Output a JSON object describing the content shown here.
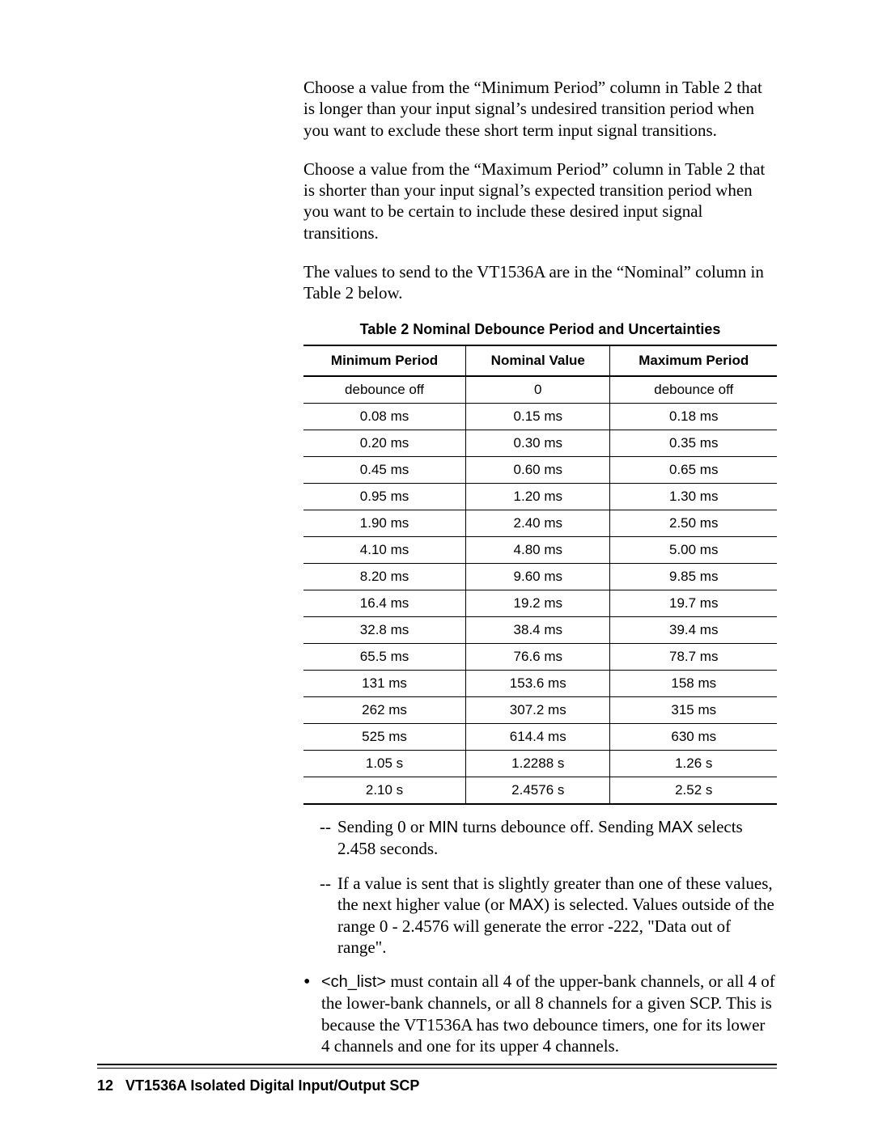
{
  "paragraphs": {
    "p1": "Choose a value from the “Minimum Period” column in Table 2 that is longer than your input signal’s undesired transition period when you want to exclude these short term input signal transitions.",
    "p2": "Choose a value from the “Maximum Period” column in Table 2 that is shorter than your input signal’s expected transition period when you want to be certain to include these desired input signal transitions.",
    "p3": "The values to send to the VT1536A are in the “Nominal” column in Table 2 below."
  },
  "table": {
    "caption": "Table 2  Nominal Debounce Period and Uncertainties",
    "columns": [
      "Minimum Period",
      "Nominal Value",
      "Maximum Period"
    ],
    "rows": [
      [
        "debounce off",
        "0",
        "debounce off"
      ],
      [
        "0.08 ms",
        "0.15 ms",
        "0.18 ms"
      ],
      [
        "0.20 ms",
        "0.30 ms",
        "0.35 ms"
      ],
      [
        "0.45 ms",
        "0.60 ms",
        "0.65 ms"
      ],
      [
        "0.95 ms",
        "1.20 ms",
        "1.30 ms"
      ],
      [
        "1.90 ms",
        "2.40 ms",
        "2.50 ms"
      ],
      [
        "4.10 ms",
        "4.80 ms",
        "5.00 ms"
      ],
      [
        "8.20 ms",
        "9.60 ms",
        "9.85 ms"
      ],
      [
        "16.4 ms",
        "19.2 ms",
        "19.7 ms"
      ],
      [
        "32.8 ms",
        "38.4 ms",
        "39.4 ms"
      ],
      [
        "65.5 ms",
        "76.6 ms",
        "78.7 ms"
      ],
      [
        "131 ms",
        "153.6 ms",
        "158 ms"
      ],
      [
        "262 ms",
        "307.2 ms",
        "315 ms"
      ],
      [
        "525 ms",
        "614.4 ms",
        "630 ms"
      ],
      [
        "1.05 s",
        "1.2288 s",
        "1.26 s"
      ],
      [
        "2.10 s",
        "2.4576 s",
        "2.52 s"
      ]
    ]
  },
  "notes": {
    "n1_pre": "Sending 0 or ",
    "n1_code1": "MIN",
    "n1_mid": " turns debounce off. Sending ",
    "n1_code2": "MAX",
    "n1_post": " selects 2.458 seconds.",
    "n2_pre": "If a value is sent that is slightly greater than one of these values, the next higher value (or ",
    "n2_code": "MAX",
    "n2_post": ") is selected. Values outside of the range 0 - 2.4576 will generate the error -222, \"Data out of range\"."
  },
  "bullet": {
    "code": "<ch_list>",
    "text": " must contain all 4 of the upper-bank channels, or all 4 of the lower-bank channels, or all 8 channels for a given SCP. This is because the VT1536A has two debounce timers, one for its lower 4 channels and one for its upper 4 channels."
  },
  "footer": {
    "page_num": "12",
    "title": "VT1536A Isolated Digital Input/Output SCP"
  },
  "marks": {
    "dash": "--",
    "bullet": "•"
  }
}
